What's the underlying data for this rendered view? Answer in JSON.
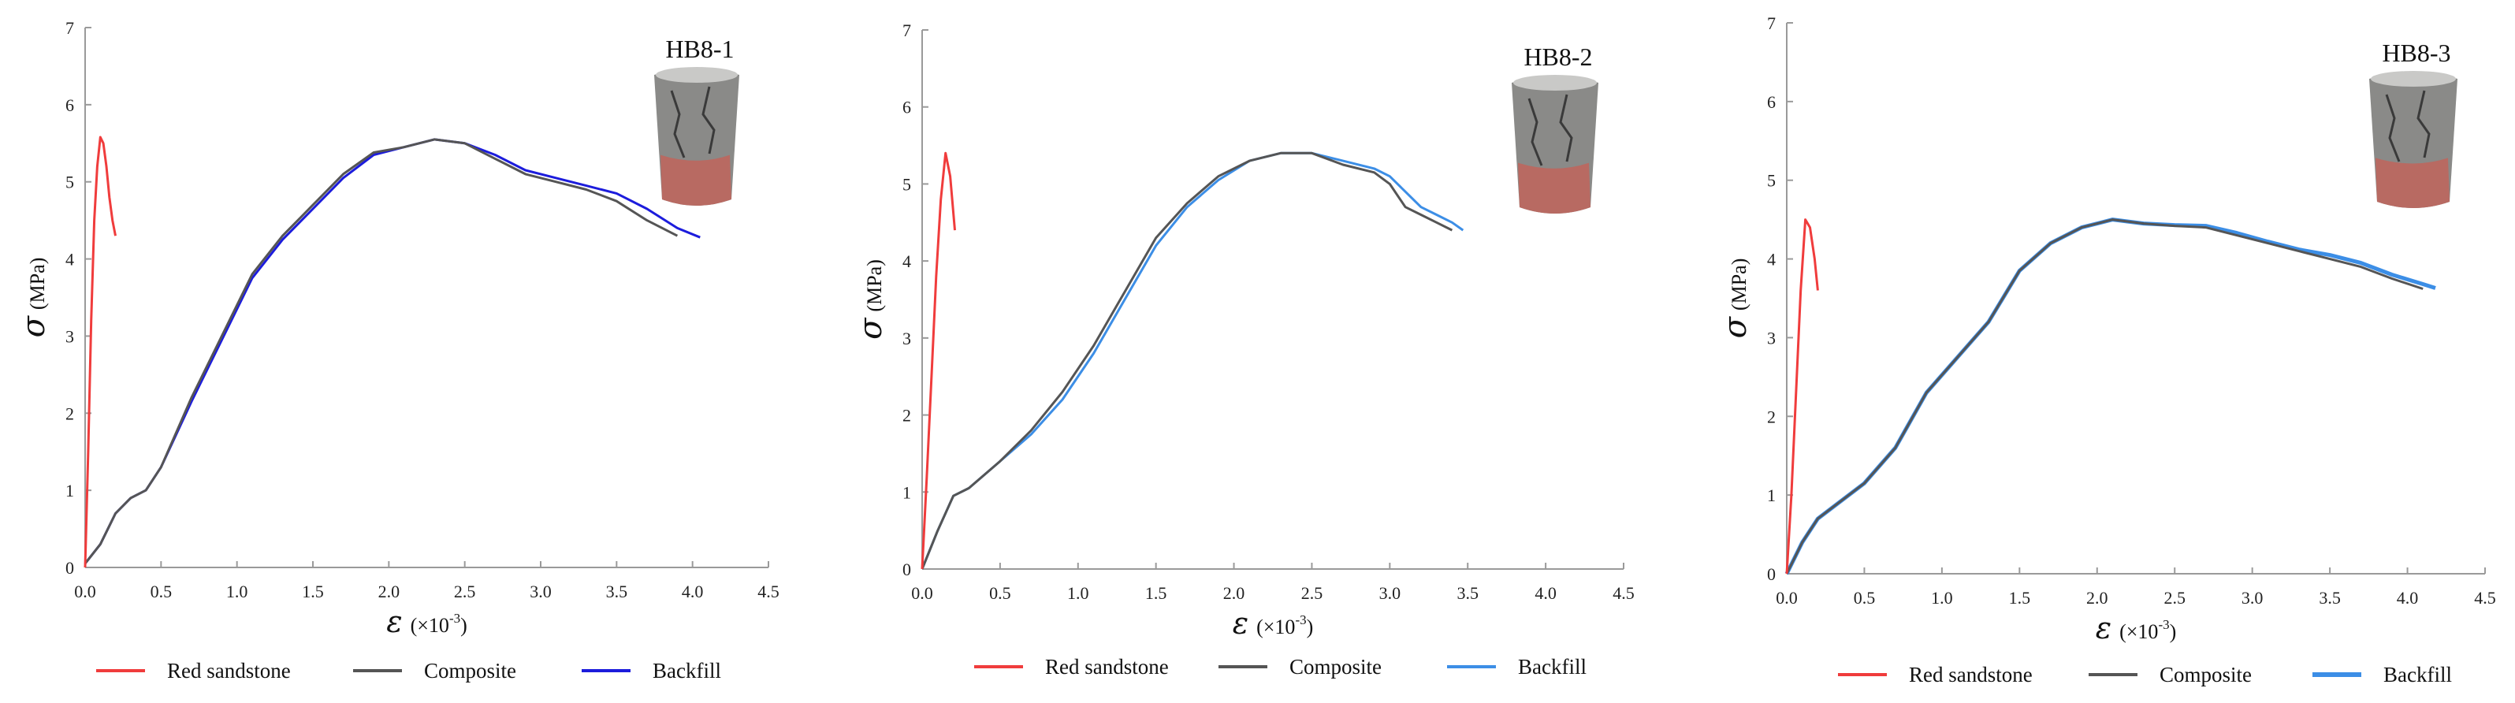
{
  "colors": {
    "red_sandstone": "#f03c3c",
    "composite": "#555555",
    "backfill_1": "#1c1cdc",
    "backfill_2": "#3c8ee6",
    "backfill_3": "#3c8ee6",
    "axis": "#9a9a9a"
  },
  "chart_data": [
    {
      "type": "line",
      "specimen_label": "HB8-1",
      "xlabel_symbol": "ε",
      "xlabel_unit": "(×10",
      "xlabel_exp": "-3",
      "xlabel_close": ")",
      "ylabel_symbol": "σ",
      "ylabel_unit": "(MPa)",
      "xlim": [
        0,
        4.5
      ],
      "ylim": [
        0,
        7
      ],
      "xticks": [
        0,
        0.5,
        1.0,
        1.5,
        2.0,
        2.5,
        3.0,
        3.5,
        4.0,
        4.5
      ],
      "xtick_labels": [
        "0.0",
        "0.5",
        "1.0",
        "1.5",
        "2.0",
        "2.5",
        "3.0",
        "3.5",
        "4.0",
        "4.5"
      ],
      "yticks": [
        0,
        1,
        2,
        3,
        4,
        5,
        6,
        7
      ],
      "ytick_labels": [
        "0",
        "1",
        "2",
        "3",
        "4",
        "5",
        "6",
        "7"
      ],
      "grid": false,
      "legend_position": "bottom",
      "series": [
        {
          "name": "Red sandstone",
          "x": [
            0,
            0.02,
            0.04,
            0.06,
            0.08,
            0.1,
            0.12,
            0.14,
            0.16,
            0.18,
            0.2
          ],
          "y": [
            0,
            1.5,
            3.2,
            4.5,
            5.2,
            5.58,
            5.5,
            5.2,
            4.8,
            4.5,
            4.3
          ]
        },
        {
          "name": "Composite",
          "x": [
            0,
            0.1,
            0.2,
            0.3,
            0.4,
            0.5,
            0.7,
            0.9,
            1.1,
            1.3,
            1.5,
            1.7,
            1.9,
            2.1,
            2.3,
            2.5,
            2.7,
            2.9,
            3.1,
            3.3,
            3.5,
            3.7,
            3.9
          ],
          "y": [
            0.05,
            0.3,
            0.7,
            0.9,
            1.0,
            1.3,
            2.2,
            3.0,
            3.8,
            4.3,
            4.7,
            5.1,
            5.38,
            5.45,
            5.55,
            5.5,
            5.3,
            5.1,
            5.0,
            4.9,
            4.75,
            4.5,
            4.3
          ]
        },
        {
          "name": "Backfill",
          "x": [
            0,
            0.1,
            0.2,
            0.3,
            0.4,
            0.5,
            0.7,
            0.9,
            1.1,
            1.3,
            1.5,
            1.7,
            1.9,
            2.1,
            2.3,
            2.5,
            2.7,
            2.9,
            3.1,
            3.3,
            3.5,
            3.7,
            3.9,
            4.05
          ],
          "y": [
            0.05,
            0.3,
            0.7,
            0.9,
            1.0,
            1.3,
            2.15,
            2.95,
            3.75,
            4.25,
            4.65,
            5.05,
            5.35,
            5.45,
            5.55,
            5.5,
            5.35,
            5.15,
            5.05,
            4.95,
            4.85,
            4.65,
            4.4,
            4.28
          ]
        }
      ]
    },
    {
      "type": "line",
      "specimen_label": "HB8-2",
      "xlabel_symbol": "ε",
      "xlabel_unit": "(×10",
      "xlabel_exp": "-3",
      "xlabel_close": ")",
      "ylabel_symbol": "σ",
      "ylabel_unit": "(MPa)",
      "xlim": [
        0,
        4.5
      ],
      "ylim": [
        0,
        7
      ],
      "xticks": [
        0,
        0.5,
        1.0,
        1.5,
        2.0,
        2.5,
        3.0,
        3.5,
        4.0,
        4.5
      ],
      "xtick_labels": [
        "0.0",
        "0.5",
        "1.0",
        "1.5",
        "2.0",
        "2.5",
        "3.0",
        "3.5",
        "4.0",
        "4.5"
      ],
      "yticks": [
        0,
        1,
        2,
        3,
        4,
        5,
        6,
        7
      ],
      "ytick_labels": [
        "0",
        "1",
        "2",
        "3",
        "4",
        "5",
        "6",
        "7"
      ],
      "grid": false,
      "legend_position": "bottom",
      "series": [
        {
          "name": "Red sandstone",
          "x": [
            0,
            0.03,
            0.06,
            0.09,
            0.12,
            0.15,
            0.18,
            0.21
          ],
          "y": [
            0,
            1.2,
            2.5,
            3.8,
            4.8,
            5.4,
            5.1,
            4.4
          ]
        },
        {
          "name": "Composite",
          "x": [
            0,
            0.1,
            0.2,
            0.3,
            0.5,
            0.7,
            0.9,
            1.1,
            1.3,
            1.5,
            1.7,
            1.9,
            2.1,
            2.3,
            2.5,
            2.7,
            2.9,
            3.0,
            3.1,
            3.2,
            3.3,
            3.4
          ],
          "y": [
            0,
            0.5,
            0.95,
            1.05,
            1.4,
            1.8,
            2.3,
            2.9,
            3.6,
            4.3,
            4.75,
            5.1,
            5.3,
            5.4,
            5.4,
            5.25,
            5.15,
            5.0,
            4.7,
            4.6,
            4.5,
            4.4
          ]
        },
        {
          "name": "Backfill",
          "x": [
            0,
            0.1,
            0.2,
            0.3,
            0.5,
            0.7,
            0.9,
            1.1,
            1.3,
            1.5,
            1.7,
            1.9,
            2.1,
            2.3,
            2.5,
            2.7,
            2.9,
            3.0,
            3.1,
            3.2,
            3.3,
            3.4,
            3.47
          ],
          "y": [
            0,
            0.5,
            0.95,
            1.05,
            1.4,
            1.75,
            2.2,
            2.8,
            3.5,
            4.2,
            4.7,
            5.05,
            5.3,
            5.4,
            5.4,
            5.3,
            5.2,
            5.1,
            4.9,
            4.7,
            4.6,
            4.5,
            4.4
          ]
        }
      ]
    },
    {
      "type": "line",
      "specimen_label": "HB8-3",
      "xlabel_symbol": "ε",
      "xlabel_unit": "(×10",
      "xlabel_exp": "-3",
      "xlabel_close": ")",
      "ylabel_symbol": "σ",
      "ylabel_unit": "(MPa)",
      "xlim": [
        0,
        4.5
      ],
      "ylim": [
        0,
        7
      ],
      "xticks": [
        0,
        0.5,
        1.0,
        1.5,
        2.0,
        2.5,
        3.0,
        3.5,
        4.0,
        4.5
      ],
      "xtick_labels": [
        "0.0",
        "0.5",
        "1.0",
        "1.5",
        "2.0",
        "2.5",
        "3.0",
        "3.5",
        "4.0",
        "4.5"
      ],
      "yticks": [
        0,
        1,
        2,
        3,
        4,
        5,
        6,
        7
      ],
      "ytick_labels": [
        "0",
        "1",
        "2",
        "3",
        "4",
        "5",
        "6",
        "7"
      ],
      "grid": false,
      "legend_position": "bottom",
      "series": [
        {
          "name": "Red sandstone",
          "x": [
            0,
            0.03,
            0.06,
            0.09,
            0.12,
            0.15,
            0.18,
            0.2
          ],
          "y": [
            0,
            1.0,
            2.3,
            3.6,
            4.5,
            4.4,
            4.0,
            3.6
          ]
        },
        {
          "name": "Composite",
          "x": [
            0,
            0.1,
            0.2,
            0.3,
            0.5,
            0.7,
            0.9,
            1.1,
            1.3,
            1.5,
            1.7,
            1.9,
            2.1,
            2.3,
            2.5,
            2.7,
            2.9,
            3.1,
            3.3,
            3.5,
            3.7,
            3.9,
            4.1
          ],
          "y": [
            0,
            0.4,
            0.7,
            0.85,
            1.15,
            1.6,
            2.3,
            2.75,
            3.2,
            3.85,
            4.2,
            4.4,
            4.5,
            4.45,
            4.42,
            4.4,
            4.3,
            4.2,
            4.1,
            4.0,
            3.9,
            3.75,
            3.62
          ]
        },
        {
          "name": "Backfill",
          "x": [
            0,
            0.1,
            0.2,
            0.3,
            0.5,
            0.7,
            0.9,
            1.1,
            1.3,
            1.5,
            1.7,
            1.9,
            2.1,
            2.3,
            2.5,
            2.7,
            2.9,
            3.1,
            3.3,
            3.5,
            3.7,
            3.9,
            4.1,
            4.18
          ],
          "y": [
            0,
            0.4,
            0.7,
            0.85,
            1.15,
            1.6,
            2.3,
            2.75,
            3.2,
            3.85,
            4.2,
            4.4,
            4.5,
            4.45,
            4.43,
            4.42,
            4.33,
            4.22,
            4.12,
            4.05,
            3.95,
            3.8,
            3.68,
            3.63
          ]
        }
      ]
    }
  ]
}
